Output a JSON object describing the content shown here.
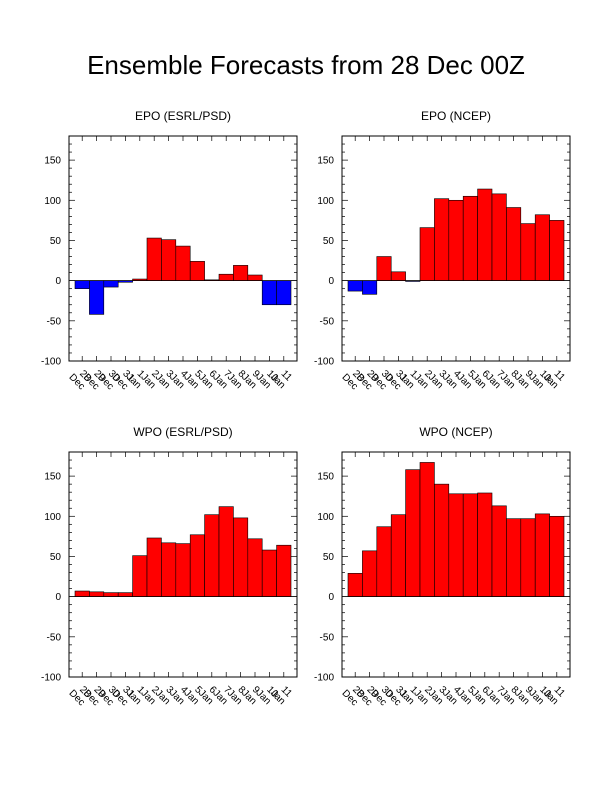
{
  "page": {
    "title": "Ensemble Forecasts from 28 Dec 00Z"
  },
  "colors": {
    "positive": "#ff0000",
    "negative": "#0000ff",
    "axis": "#000000",
    "background": "#ffffff"
  },
  "chart_data": [
    {
      "type": "bar",
      "title": "EPO (ESRL/PSD)",
      "categories": [
        "28 Dec",
        "29 Dec",
        "30 Dec",
        "31 Dec",
        "1 Jan",
        "2 Jan",
        "3 Jan",
        "4 Jan",
        "5 Jan",
        "6 Jan",
        "7 Jan",
        "8 Jan",
        "9 Jan",
        "10 Jan",
        "11 Jan"
      ],
      "values": [
        -10,
        -42,
        -8,
        -2,
        2,
        53,
        51,
        43,
        24,
        1,
        8,
        19,
        7,
        -30,
        -30
      ],
      "ylim": [
        -100,
        180
      ],
      "yticks": [
        -100,
        -50,
        0,
        50,
        100,
        150
      ],
      "grid": false,
      "xlabel": "",
      "ylabel": ""
    },
    {
      "type": "bar",
      "title": "EPO (NCEP)",
      "categories": [
        "28 Dec",
        "29 Dec",
        "30 Dec",
        "31 Dec",
        "1 Jan",
        "2 Jan",
        "3 Jan",
        "4 Jan",
        "5 Jan",
        "6 Jan",
        "7 Jan",
        "8 Jan",
        "9 Jan",
        "10 Jan",
        "11 Jan"
      ],
      "values": [
        -13,
        -17,
        30,
        11,
        -1,
        66,
        102,
        100,
        105,
        114,
        108,
        91,
        71,
        82,
        75
      ],
      "ylim": [
        -100,
        180
      ],
      "yticks": [
        -100,
        -50,
        0,
        50,
        100,
        150
      ],
      "grid": false,
      "xlabel": "",
      "ylabel": ""
    },
    {
      "type": "bar",
      "title": "WPO (ESRL/PSD)",
      "categories": [
        "28 Dec",
        "29 Dec",
        "30 Dec",
        "31 Dec",
        "1 Jan",
        "2 Jan",
        "3 Jan",
        "4 Jan",
        "5 Jan",
        "6 Jan",
        "7 Jan",
        "8 Jan",
        "9 Jan",
        "10 Jan",
        "11 Jan"
      ],
      "values": [
        7,
        6,
        5,
        5,
        51,
        73,
        67,
        66,
        77,
        102,
        112,
        98,
        72,
        58,
        64
      ],
      "ylim": [
        -100,
        180
      ],
      "yticks": [
        -100,
        -50,
        0,
        50,
        100,
        150
      ],
      "grid": false,
      "xlabel": "",
      "ylabel": ""
    },
    {
      "type": "bar",
      "title": "WPO (NCEP)",
      "categories": [
        "28 Dec",
        "29 Dec",
        "30 Dec",
        "31 Dec",
        "1 Jan",
        "2 Jan",
        "3 Jan",
        "4 Jan",
        "5 Jan",
        "6 Jan",
        "7 Jan",
        "8 Jan",
        "9 Jan",
        "10 Jan",
        "11 Jan"
      ],
      "values": [
        29,
        57,
        87,
        102,
        158,
        167,
        140,
        128,
        128,
        129,
        113,
        97,
        97,
        103,
        100
      ],
      "ylim": [
        -100,
        180
      ],
      "yticks": [
        -100,
        -50,
        0,
        50,
        100,
        150
      ],
      "grid": false,
      "xlabel": "",
      "ylabel": ""
    }
  ]
}
